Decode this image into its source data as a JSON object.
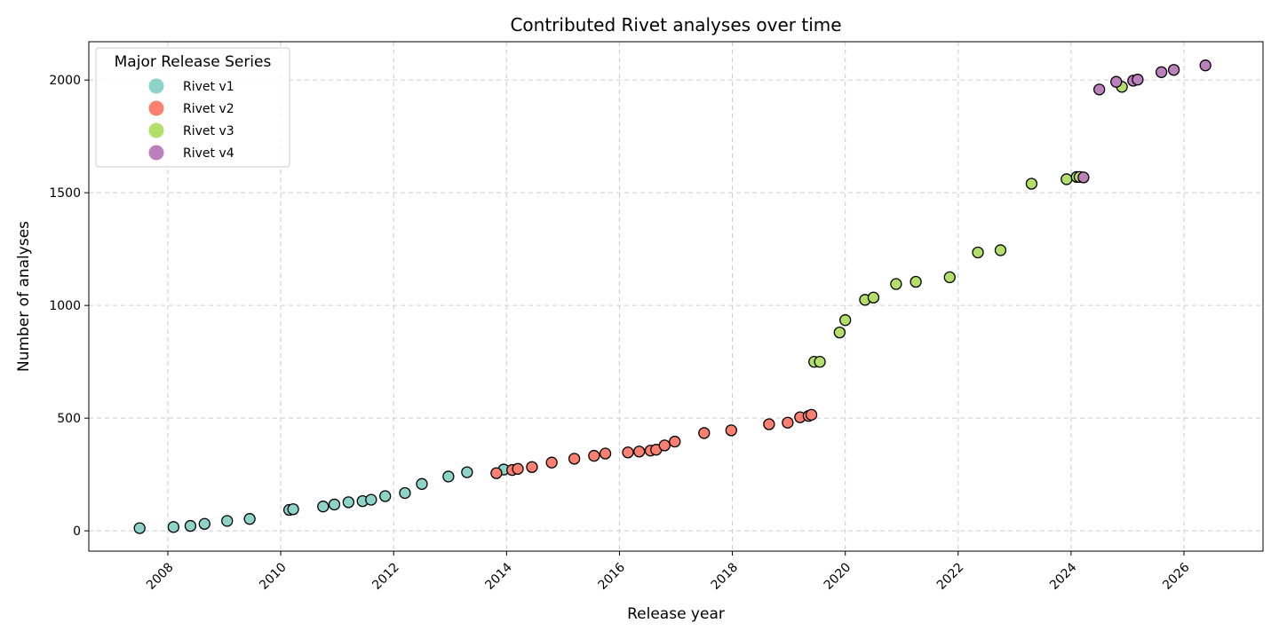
{
  "chart_data": {
    "type": "scatter",
    "title": "Contributed Rivet analyses over time",
    "xlabel": "Release year",
    "ylabel": "Number of analyses",
    "xlim": [
      2006.6,
      2027.4
    ],
    "ylim": [
      -90,
      2170
    ],
    "x_ticks": [
      "2008",
      "2010",
      "2012",
      "2014",
      "2016",
      "2018",
      "2020",
      "2022",
      "2024",
      "2026"
    ],
    "y_ticks": [
      "0",
      "500",
      "1000",
      "1500",
      "2000"
    ],
    "grid": true,
    "legend": {
      "title": "Major Release Series",
      "position": "top-left"
    },
    "series": [
      {
        "name": "Rivet v1",
        "color": "#8dd3c7",
        "points": [
          [
            2007.5,
            12
          ],
          [
            2008.1,
            17
          ],
          [
            2008.4,
            22
          ],
          [
            2008.65,
            31
          ],
          [
            2009.05,
            44
          ],
          [
            2009.45,
            53
          ],
          [
            2010.15,
            93
          ],
          [
            2010.22,
            96
          ],
          [
            2010.75,
            108
          ],
          [
            2010.95,
            117
          ],
          [
            2011.2,
            127
          ],
          [
            2011.45,
            132
          ],
          [
            2011.6,
            138
          ],
          [
            2011.85,
            154
          ],
          [
            2012.2,
            168
          ],
          [
            2012.5,
            208
          ],
          [
            2012.97,
            241
          ],
          [
            2013.3,
            260
          ],
          [
            2013.95,
            272
          ]
        ]
      },
      {
        "name": "Rivet v2",
        "color": "#fb8072",
        "points": [
          [
            2013.82,
            256
          ],
          [
            2014.1,
            270
          ],
          [
            2014.2,
            275
          ],
          [
            2014.45,
            283
          ],
          [
            2014.8,
            303
          ],
          [
            2015.2,
            320
          ],
          [
            2015.55,
            333
          ],
          [
            2015.75,
            343
          ],
          [
            2016.15,
            348
          ],
          [
            2016.35,
            352
          ],
          [
            2016.55,
            356
          ],
          [
            2016.65,
            360
          ],
          [
            2016.8,
            379
          ],
          [
            2016.98,
            396
          ],
          [
            2017.5,
            434
          ],
          [
            2017.98,
            446
          ],
          [
            2018.65,
            473
          ],
          [
            2018.98,
            480
          ],
          [
            2019.2,
            504
          ],
          [
            2019.35,
            510
          ],
          [
            2019.4,
            515
          ]
        ]
      },
      {
        "name": "Rivet v3",
        "color": "#b3de69",
        "points": [
          [
            2019.45,
            750
          ],
          [
            2019.55,
            750
          ],
          [
            2019.9,
            880
          ],
          [
            2020.0,
            935
          ],
          [
            2020.35,
            1025
          ],
          [
            2020.5,
            1035
          ],
          [
            2020.9,
            1095
          ],
          [
            2021.25,
            1105
          ],
          [
            2021.85,
            1125
          ],
          [
            2022.35,
            1235
          ],
          [
            2022.75,
            1245
          ],
          [
            2023.3,
            1540
          ],
          [
            2023.92,
            1560
          ],
          [
            2024.1,
            1570
          ],
          [
            2024.15,
            1570
          ],
          [
            2024.9,
            1970
          ]
        ]
      },
      {
        "name": "Rivet v4",
        "color": "#bc80bd",
        "points": [
          [
            2024.22,
            1568
          ],
          [
            2024.5,
            1958
          ],
          [
            2024.8,
            1992
          ],
          [
            2025.1,
            1997
          ],
          [
            2025.18,
            2002
          ],
          [
            2025.6,
            2035
          ],
          [
            2025.82,
            2045
          ],
          [
            2026.38,
            2065
          ]
        ]
      }
    ]
  }
}
